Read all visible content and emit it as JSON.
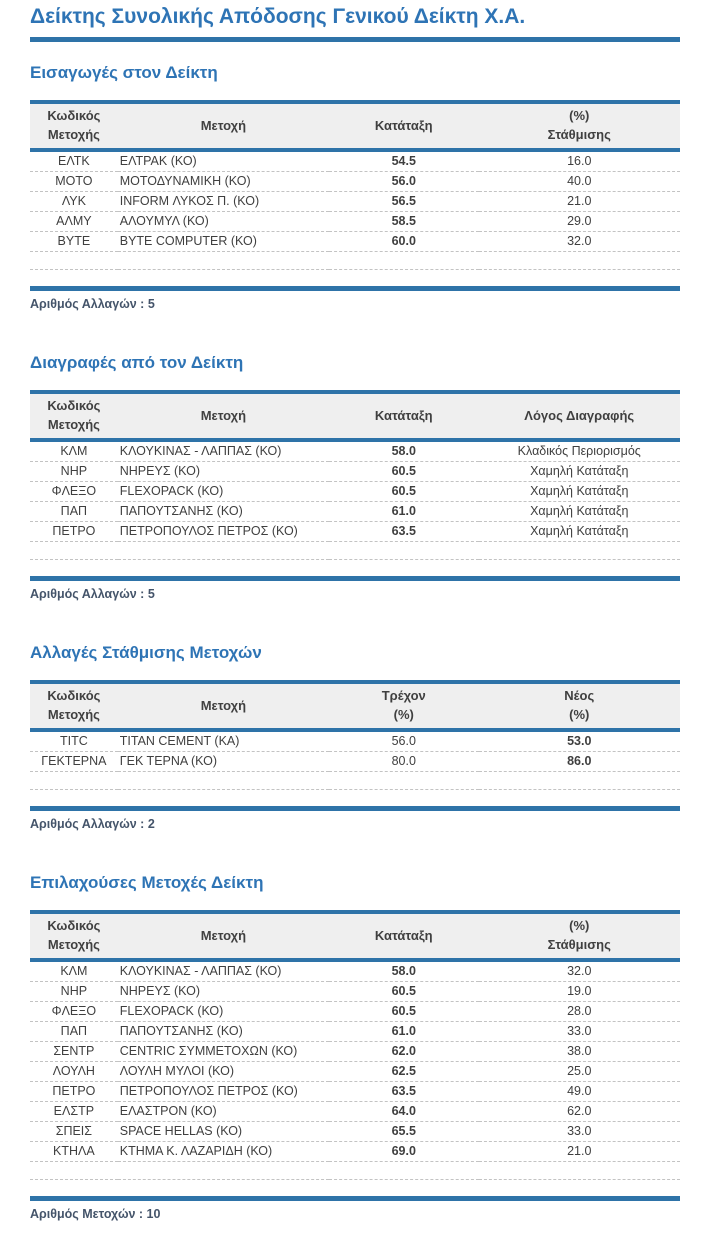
{
  "doc": {
    "title": "Δείκτης Συνολικής Απόδοσης Γενικού Δείκτη Χ.Α."
  },
  "colors": {
    "accent_blue": "#2E74B5",
    "bar_blue": "#2E73A8",
    "header_bg": "#EFEFEF",
    "header_text": "#404040",
    "body_text": "#3F3F3F",
    "label_text": "#44546A",
    "dash": "#C3C3C3"
  },
  "sections": [
    {
      "heading": "Εισαγωγές στον Δείκτη",
      "columns": [
        [
          "Κωδικός",
          "Μετοχής"
        ],
        [
          "Μετοχή"
        ],
        [
          "Κατάταξη"
        ],
        [
          "(%)",
          "Στάθμισης"
        ]
      ],
      "emphasis_col": 2,
      "rows": [
        [
          "ΕΛΤΚ",
          "ΕΛΤΡΑΚ (ΚΟ)",
          "54.5",
          "16.0"
        ],
        [
          "ΜΟΤΟ",
          "ΜΟΤΟΔΥΝΑΜΙΚΗ (ΚΟ)",
          "56.0",
          "40.0"
        ],
        [
          "ΛΥΚ",
          "INFORM ΛΥΚΟΣ Π. (ΚΟ)",
          "56.5",
          "21.0"
        ],
        [
          "ΑΛΜΥ",
          "ΑΛΟΥΜΥΛ (ΚΟ)",
          "58.5",
          "29.0"
        ],
        [
          "BYTE",
          "BYTE COMPUTER (ΚΟ)",
          "60.0",
          "32.0"
        ]
      ],
      "footer": "Αριθμός Αλλαγών : 5"
    },
    {
      "heading": "Διαγραφές από τον Δείκτη",
      "columns": [
        [
          "Κωδικός",
          "Μετοχής"
        ],
        [
          "Μετοχή"
        ],
        [
          "Κατάταξη"
        ],
        [
          "Λόγος Διαγραφής"
        ]
      ],
      "emphasis_col": 2,
      "rows": [
        [
          "ΚΛΜ",
          "ΚΛΟΥΚΙΝΑΣ - ΛΑΠΠΑΣ (ΚΟ)",
          "58.0",
          "Κλαδικός Περιορισμός"
        ],
        [
          "ΝΗΡ",
          "ΝΗΡΕΥΣ (ΚΟ)",
          "60.5",
          "Χαμηλή Κατάταξη"
        ],
        [
          "ΦΛΕΞΟ",
          "FLEXOPACK (ΚΟ)",
          "60.5",
          "Χαμηλή Κατάταξη"
        ],
        [
          "ΠΑΠ",
          "ΠΑΠΟΥΤΣΑΝΗΣ (ΚΟ)",
          "61.0",
          "Χαμηλή Κατάταξη"
        ],
        [
          "ΠΕΤΡΟ",
          "ΠΕΤΡΟΠΟΥΛΟΣ ΠΕΤΡΟΣ (ΚΟ)",
          "63.5",
          "Χαμηλή Κατάταξη"
        ]
      ],
      "footer": "Αριθμός Αλλαγών : 5"
    },
    {
      "heading": "Αλλαγές Στάθμισης Μετοχών",
      "columns": [
        [
          "Κωδικός",
          "Μετοχής"
        ],
        [
          "Μετοχή"
        ],
        [
          "Τρέχον",
          "(%)"
        ],
        [
          "Νέος",
          "(%)"
        ]
      ],
      "emphasis_col": 3,
      "rows": [
        [
          "TITC",
          "TITAN CEMENT (ΚΑ)",
          "56.0",
          "53.0"
        ],
        [
          "ΓΕΚΤΕΡΝΑ",
          "ΓΕΚ ΤΕΡΝΑ (ΚΟ)",
          "80.0",
          "86.0"
        ]
      ],
      "footer": "Αριθμός Αλλαγών : 2"
    },
    {
      "heading": "Επιλαχούσες Μετοχές Δείκτη",
      "columns": [
        [
          "Κωδικός",
          "Μετοχής"
        ],
        [
          "Μετοχή"
        ],
        [
          "Κατάταξη"
        ],
        [
          "(%)",
          "Στάθμισης"
        ]
      ],
      "emphasis_col": 2,
      "rows": [
        [
          "ΚΛΜ",
          "ΚΛΟΥΚΙΝΑΣ - ΛΑΠΠΑΣ (ΚΟ)",
          "58.0",
          "32.0"
        ],
        [
          "ΝΗΡ",
          "ΝΗΡΕΥΣ (ΚΟ)",
          "60.5",
          "19.0"
        ],
        [
          "ΦΛΕΞΟ",
          "FLEXOPACK (ΚΟ)",
          "60.5",
          "28.0"
        ],
        [
          "ΠΑΠ",
          "ΠΑΠΟΥΤΣΑΝΗΣ (ΚΟ)",
          "61.0",
          "33.0"
        ],
        [
          "ΣΕΝΤΡ",
          "CENTRIC ΣΥΜΜΕΤΟΧΩΝ (ΚΟ)",
          "62.0",
          "38.0"
        ],
        [
          "ΛΟΥΛΗ",
          "ΛΟΥΛΗ ΜΥΛΟΙ (ΚΟ)",
          "62.5",
          "25.0"
        ],
        [
          "ΠΕΤΡΟ",
          "ΠΕΤΡΟΠΟΥΛΟΣ ΠΕΤΡΟΣ (ΚΟ)",
          "63.5",
          "49.0"
        ],
        [
          "ΕΛΣΤΡ",
          "ΕΛΑΣΤΡΟΝ (ΚΟ)",
          "64.0",
          "62.0"
        ],
        [
          "ΣΠΕΙΣ",
          "SPACE HELLAS (ΚΟ)",
          "65.5",
          "33.0"
        ],
        [
          "ΚΤΗΛΑ",
          "ΚΤΗΜΑ Κ. ΛΑΖΑΡΙΔΗ (ΚΟ)",
          "69.0",
          "21.0"
        ]
      ],
      "footer": "Αριθμός Μετοχών : 10"
    }
  ]
}
